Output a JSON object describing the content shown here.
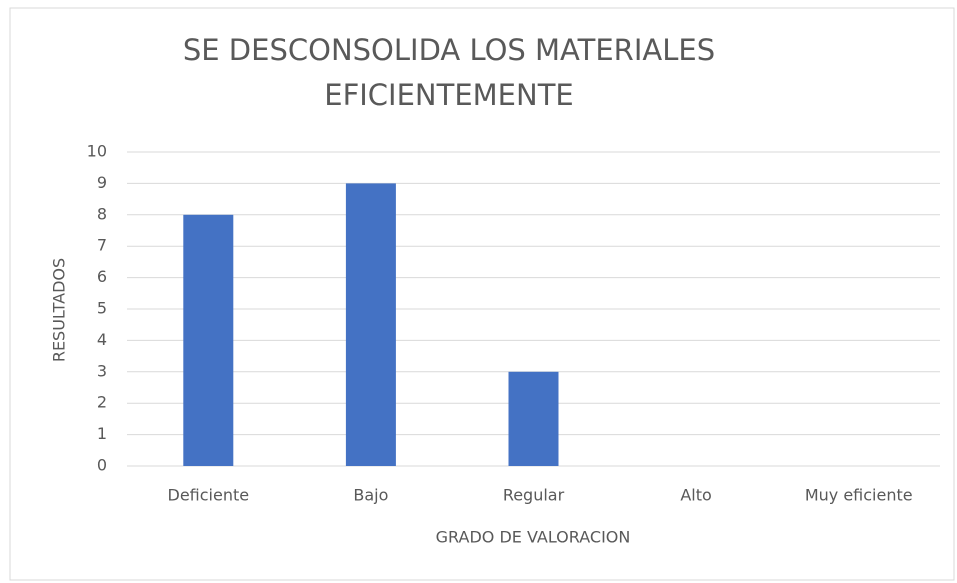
{
  "chart_data": {
    "type": "bar",
    "title": "SE DESCONSOLIDA LOS MATERIALES EFICIENTEMENTE",
    "x_label": "GRADO DE VALORACION",
    "y_label": "RESULTADOS",
    "categories": [
      "Deficiente",
      "Bajo",
      "Regular",
      "Alto",
      "Muy eficiente"
    ],
    "values": [
      8,
      9,
      3,
      0,
      0
    ],
    "color": "#4472c4",
    "ylim": [
      0,
      10
    ],
    "yticks": [
      0,
      1,
      2,
      3,
      4,
      5,
      6,
      7,
      8,
      9,
      10
    ],
    "grid": true
  }
}
